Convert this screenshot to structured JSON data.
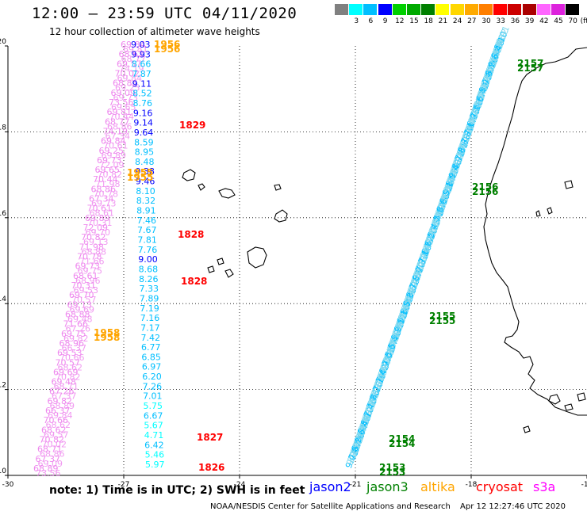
{
  "header": {
    "title": "12:00 — 23:59 UTC 04/11/2020",
    "subtitle": "12 hour collection of altimeter wave heights"
  },
  "legend": {
    "unit": "(ft)",
    "bins": [
      {
        "label": "",
        "color": "#808080"
      },
      {
        "label": "3",
        "color": "#00ffff"
      },
      {
        "label": "6",
        "color": "#00bfff"
      },
      {
        "label": "9",
        "color": "#0000ff"
      },
      {
        "label": "12",
        "color": "#00d000"
      },
      {
        "label": "15",
        "color": "#00aa00"
      },
      {
        "label": "18",
        "color": "#008000"
      },
      {
        "label": "21",
        "color": "#ffff00"
      },
      {
        "label": "24",
        "color": "#ffd700"
      },
      {
        "label": "27",
        "color": "#ffaa00"
      },
      {
        "label": "30",
        "color": "#ff7f00"
      },
      {
        "label": "33",
        "color": "#ff0000"
      },
      {
        "label": "36",
        "color": "#cc0000"
      },
      {
        "label": "39",
        "color": "#aa0000"
      },
      {
        "label": "42",
        "color": "#ff66ff"
      },
      {
        "label": "45",
        "color": "#dd22dd"
      },
      {
        "label": "70",
        "color": "#000000"
      }
    ]
  },
  "map": {
    "lon_range": [
      -30,
      -15
    ],
    "lat_range": [
      10,
      20
    ],
    "x_ticks": [
      "-30",
      "-27",
      "-24",
      "-21",
      "-18",
      "-15"
    ],
    "y_ticks": [
      "20",
      "18",
      "16",
      "14",
      "12",
      "10"
    ]
  },
  "tracks": {
    "altika_values": [
      "9.03",
      "9.93",
      "8.66",
      "7.87",
      "9.11",
      "8.52",
      "8.76",
      "9.16",
      "9.14",
      "9.64",
      "8.59",
      "8.95",
      "8.48",
      "9.38",
      "9.46",
      "8.10",
      "8.32",
      "8.91",
      "7.46",
      "7.67",
      "7.81",
      "7.76",
      "9.00",
      "8.68",
      "8.26",
      "7.33",
      "7.89",
      "7.19",
      "7.16",
      "7.17",
      "7.42",
      "6.77",
      "6.85",
      "6.97",
      "6.20",
      "7.26",
      "7.01",
      "5.75",
      "6.67",
      "5.67",
      "4.71",
      "6.42",
      "5.46",
      "5.97"
    ],
    "s3a_values": [
      "69.84",
      "68.62",
      "69.57",
      "70.02",
      "68.86",
      "69.09",
      "73.56",
      "69.81",
      "68.77",
      "74.19",
      "69.84",
      "69.25",
      "69.73",
      "69.65",
      "70.44",
      "68.86",
      "67.34",
      "70.61",
      "69.89",
      "72.09",
      "70.82",
      "71.98",
      "70.78",
      "69.73",
      "68.61",
      "70.31",
      "69.70",
      "69.13",
      "68.88",
      "71.66",
      "69.75",
      "68.96",
      "69.53",
      "70.57",
      "69.69",
      "69.48",
      "67.26",
      "69.82",
      "66.37",
      "70.66",
      "68.62",
      "70.82",
      "68.71",
      "67.37",
      "68.89"
    ],
    "time_labels": [
      {
        "text": "1956",
        "color": "#ffa500"
      },
      {
        "text": "1956",
        "color": "#ffa500"
      },
      {
        "text": "1829",
        "color": "#ff0000"
      },
      {
        "text": "1955",
        "color": "#ffa500"
      },
      {
        "text": "1955",
        "color": "#ffa500"
      },
      {
        "text": "1828",
        "color": "#ff0000"
      },
      {
        "text": "1828",
        "color": "#ff0000"
      },
      {
        "text": "1958",
        "color": "#ffa500"
      },
      {
        "text": "1958",
        "color": "#ffa500"
      },
      {
        "text": "1827",
        "color": "#ff0000"
      },
      {
        "text": "1826",
        "color": "#ff0000"
      },
      {
        "text": "2157",
        "color": "#008000"
      },
      {
        "text": "2157",
        "color": "#008000"
      },
      {
        "text": "2156",
        "color": "#008000"
      },
      {
        "text": "2156",
        "color": "#008000"
      },
      {
        "text": "2155",
        "color": "#008000"
      },
      {
        "text": "2155",
        "color": "#008000"
      },
      {
        "text": "2154",
        "color": "#008000"
      },
      {
        "text": "2154",
        "color": "#008000"
      },
      {
        "text": "2153",
        "color": "#008000"
      },
      {
        "text": "2153",
        "color": "#008000"
      }
    ]
  },
  "footer": {
    "note": "note:  1) Time is in UTC;  2) SWH is in feet",
    "satellites": [
      {
        "name": "jason2",
        "color": "#0000ff"
      },
      {
        "name": "jason3",
        "color": "#008000"
      },
      {
        "name": "altika",
        "color": "#ffa500"
      },
      {
        "name": "cryosat",
        "color": "#ff0000"
      },
      {
        "name": "s3a",
        "color": "#ff00ff"
      }
    ],
    "credit": "NOAA/NESDIS Center for Satellite Applications and Research",
    "timestamp": "Apr 12 12:27:46 UTC 2020"
  }
}
